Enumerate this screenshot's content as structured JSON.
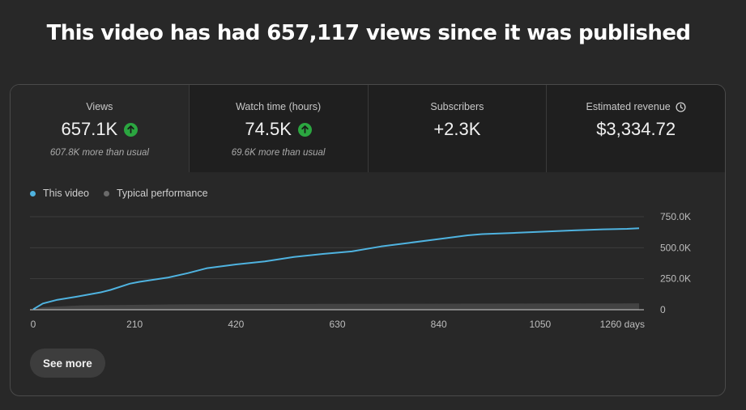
{
  "headline": "This video has had 657,117 views since it was published",
  "metrics": [
    {
      "label": "Views",
      "value": "657.1K",
      "sub": "607.8K more than usual",
      "trend_icon": "arrow-up-icon",
      "selected": true
    },
    {
      "label": "Watch time (hours)",
      "value": "74.5K",
      "sub": "69.6K more than usual",
      "trend_icon": "arrow-up-icon",
      "selected": false
    },
    {
      "label": "Subscribers",
      "value": "+2.3K",
      "sub": "",
      "selected": false
    },
    {
      "label": "Estimated revenue",
      "value": "$3,334.72",
      "sub": "",
      "label_icon": "clock-icon",
      "selected": false
    }
  ],
  "legend": {
    "this_video": "This video",
    "typical": "Typical performance"
  },
  "colors": {
    "this_video": "#4fb3e0",
    "typical": "#5a5a5a",
    "up": "#2ba640",
    "grid": "#3c3c3c",
    "axis": "#cfcfcf"
  },
  "chart_data": {
    "type": "line",
    "x_unit": "days",
    "xlim": [
      0,
      1265
    ],
    "ylim": [
      0,
      750000
    ],
    "x_ticks": [
      {
        "value": 0,
        "label": "0"
      },
      {
        "value": 210,
        "label": "210"
      },
      {
        "value": 420,
        "label": "420"
      },
      {
        "value": 630,
        "label": "630"
      },
      {
        "value": 840,
        "label": "840"
      },
      {
        "value": 1050,
        "label": "1050"
      },
      {
        "value": 1260,
        "label": "1260 days"
      }
    ],
    "y_ticks": [
      {
        "value": 0,
        "label": "0"
      },
      {
        "value": 250000,
        "label": "250.0K"
      },
      {
        "value": 500000,
        "label": "500.0K"
      },
      {
        "value": 750000,
        "label": "750.0K"
      }
    ],
    "grid": true,
    "legend_position": "top-left",
    "series": [
      {
        "name": "This video",
        "x": [
          0,
          20,
          50,
          90,
          140,
          160,
          200,
          220,
          280,
          320,
          360,
          420,
          480,
          540,
          600,
          660,
          720,
          780,
          840,
          900,
          930,
          1000,
          1060,
          1120,
          1180,
          1230,
          1255
        ],
        "y": [
          3000,
          50000,
          80000,
          105000,
          140000,
          160000,
          210000,
          225000,
          260000,
          295000,
          335000,
          365000,
          390000,
          425000,
          450000,
          470000,
          510000,
          540000,
          570000,
          600000,
          610000,
          620000,
          630000,
          640000,
          648000,
          652000,
          657117
        ]
      },
      {
        "name": "Typical performance",
        "x": [
          0,
          20,
          100,
          300,
          600,
          900,
          1255
        ],
        "y": [
          0,
          20000,
          35000,
          43000,
          47000,
          49000,
          51000
        ]
      }
    ]
  },
  "see_more": "See more"
}
